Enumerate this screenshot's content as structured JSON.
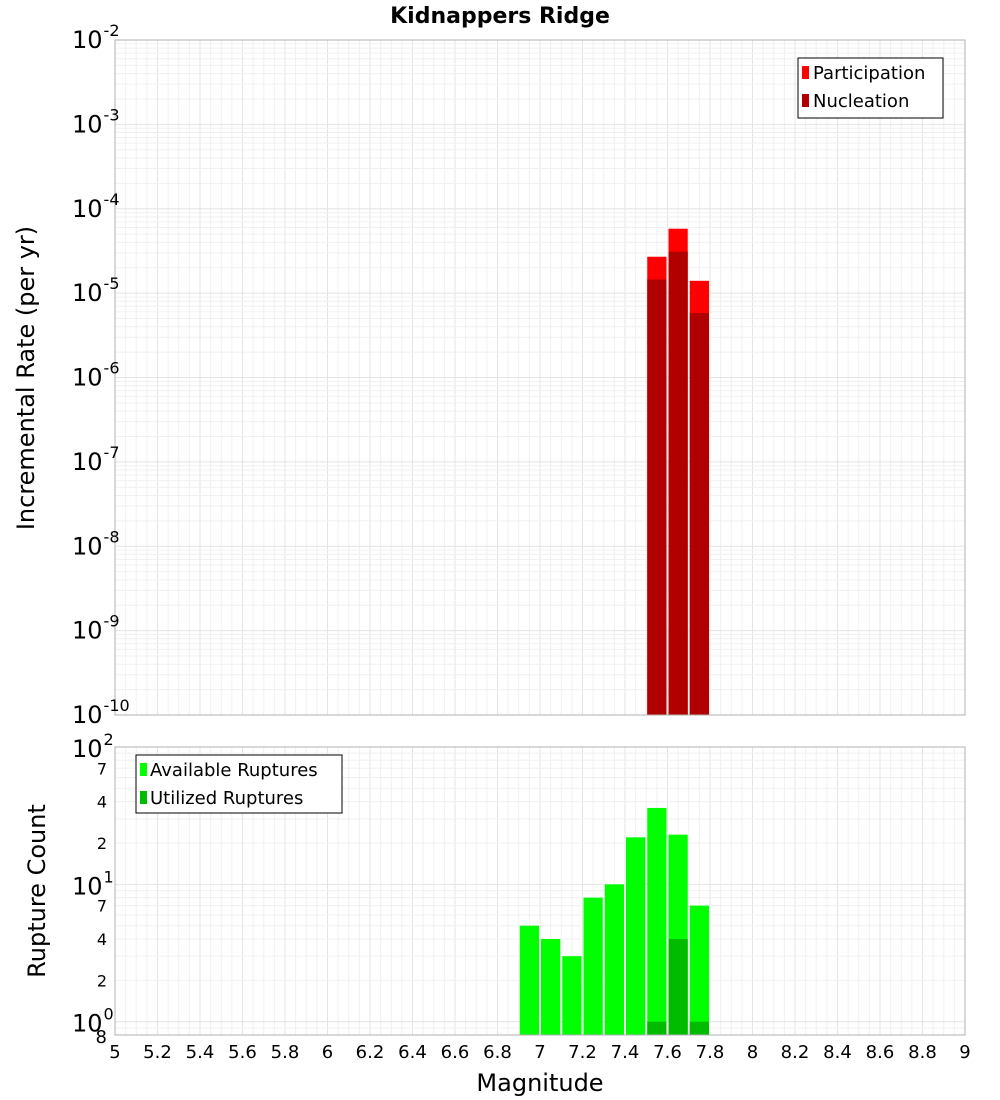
{
  "chart_data": [
    {
      "type": "bar",
      "title": "Kidnappers Ridge",
      "xlabel": "",
      "ylabel": "Incremental Rate (per yr)",
      "yscale": "log",
      "xlim": [
        5,
        9
      ],
      "ylim": [
        1e-10,
        0.01
      ],
      "grid": true,
      "legend_position": "top-right",
      "bin_width": 0.1,
      "y_tick_exponents": [
        "-10",
        "-9",
        "-8",
        "-7",
        "-6",
        "-5",
        "-4",
        "-3",
        "-2"
      ],
      "series": [
        {
          "name": "Participation",
          "color": "#ff0000",
          "x": [
            7.55,
            7.65,
            7.75
          ],
          "values": [
            2.7e-05,
            5.8e-05,
            1.4e-05
          ]
        },
        {
          "name": "Nucleation",
          "color": "#b00000",
          "x": [
            7.55,
            7.65,
            7.75
          ],
          "values": [
            1.45e-05,
            3.1e-05,
            5.8e-06
          ]
        }
      ]
    },
    {
      "type": "bar",
      "title": "",
      "xlabel": "Magnitude",
      "ylabel": "Rupture Count",
      "yscale": "log",
      "xlim": [
        5,
        9
      ],
      "ylim": [
        0.8,
        100
      ],
      "grid": true,
      "legend_position": "top-left",
      "bin_width": 0.1,
      "x_ticks": [
        "5",
        "5.2",
        "5.4",
        "5.6",
        "5.8",
        "6",
        "6.2",
        "6.4",
        "6.6",
        "6.8",
        "7",
        "7.2",
        "7.4",
        "7.6",
        "7.8",
        "8",
        "8.2",
        "8.4",
        "8.6",
        "8.8",
        "9"
      ],
      "y_major_exponents": [
        "0",
        "1",
        "2"
      ],
      "y_minor_labels": [
        "2",
        "4",
        "7",
        "2",
        "4",
        "7"
      ],
      "y_bottom_label": "8",
      "series": [
        {
          "name": "Available Ruptures",
          "color": "#00ff00",
          "x": [
            6.95,
            7.05,
            7.15,
            7.25,
            7.35,
            7.45,
            7.55,
            7.65,
            7.75
          ],
          "values": [
            5,
            4,
            3,
            8,
            10,
            22,
            36,
            23,
            7
          ]
        },
        {
          "name": "Utilized Ruptures",
          "color": "#00bb00",
          "x": [
            7.55,
            7.65,
            7.75
          ],
          "values": [
            1,
            4,
            1
          ]
        }
      ]
    }
  ]
}
